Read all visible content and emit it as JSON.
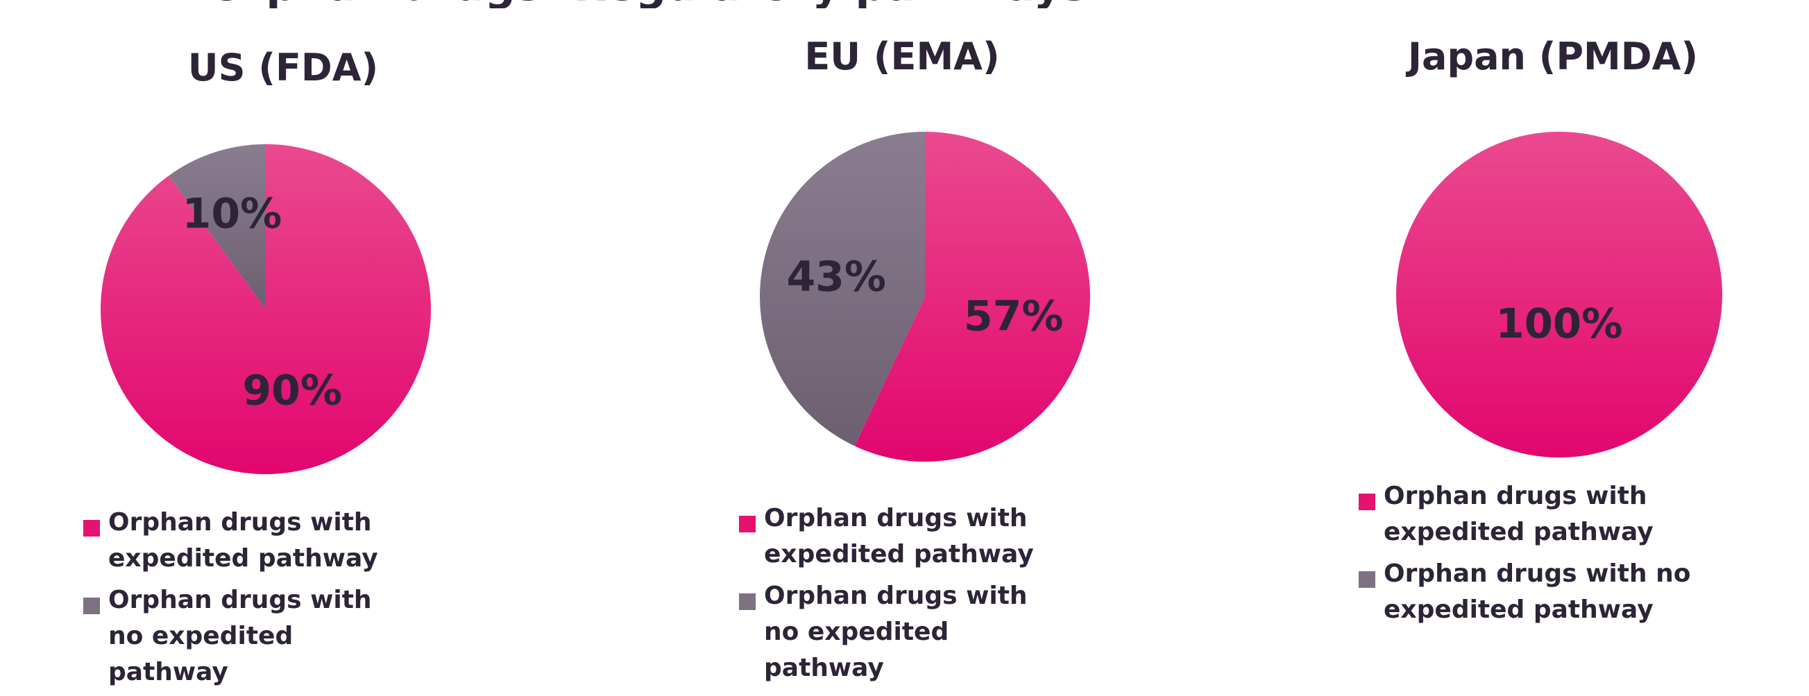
{
  "title": "Orphan drugs: Regulatory pathways",
  "colors": {
    "pink_top": "#ea4a8f",
    "pink_bottom": "#e2066e",
    "grey_top": "#8a7d8f",
    "grey_bottom": "#6c5f70",
    "text": "#2d2438",
    "swatch_pink": "#e5126f",
    "swatch_grey": "#7d7182"
  },
  "legend": [
    {
      "label": "Orphan drugs with expedited pathway",
      "color": "#e5126f"
    },
    {
      "label": "Orphan drugs with no expedited pathway",
      "color": "#7d7182"
    }
  ],
  "chart_data": [
    {
      "type": "pie",
      "title": "US (FDA)",
      "categories": [
        "Orphan drugs with expedited pathway",
        "Orphan drugs with no expedited pathway"
      ],
      "values": [
        90,
        10
      ],
      "labels": [
        "90%",
        "10%"
      ],
      "legend_placement": "bottom"
    },
    {
      "type": "pie",
      "title": "EU (EMA)",
      "categories": [
        "Orphan drugs with expedited pathway",
        "Orphan drugs with no expedited pathway"
      ],
      "values": [
        57,
        43
      ],
      "labels": [
        "57%",
        "43%"
      ],
      "legend_placement": "bottom"
    },
    {
      "type": "pie",
      "title": "Japan (PMDA)",
      "categories": [
        "Orphan drugs with expedited pathway",
        "Orphan drugs with no expedited pathway"
      ],
      "values": [
        100,
        0
      ],
      "labels": [
        "100%"
      ],
      "legend_placement": "bottom"
    }
  ]
}
